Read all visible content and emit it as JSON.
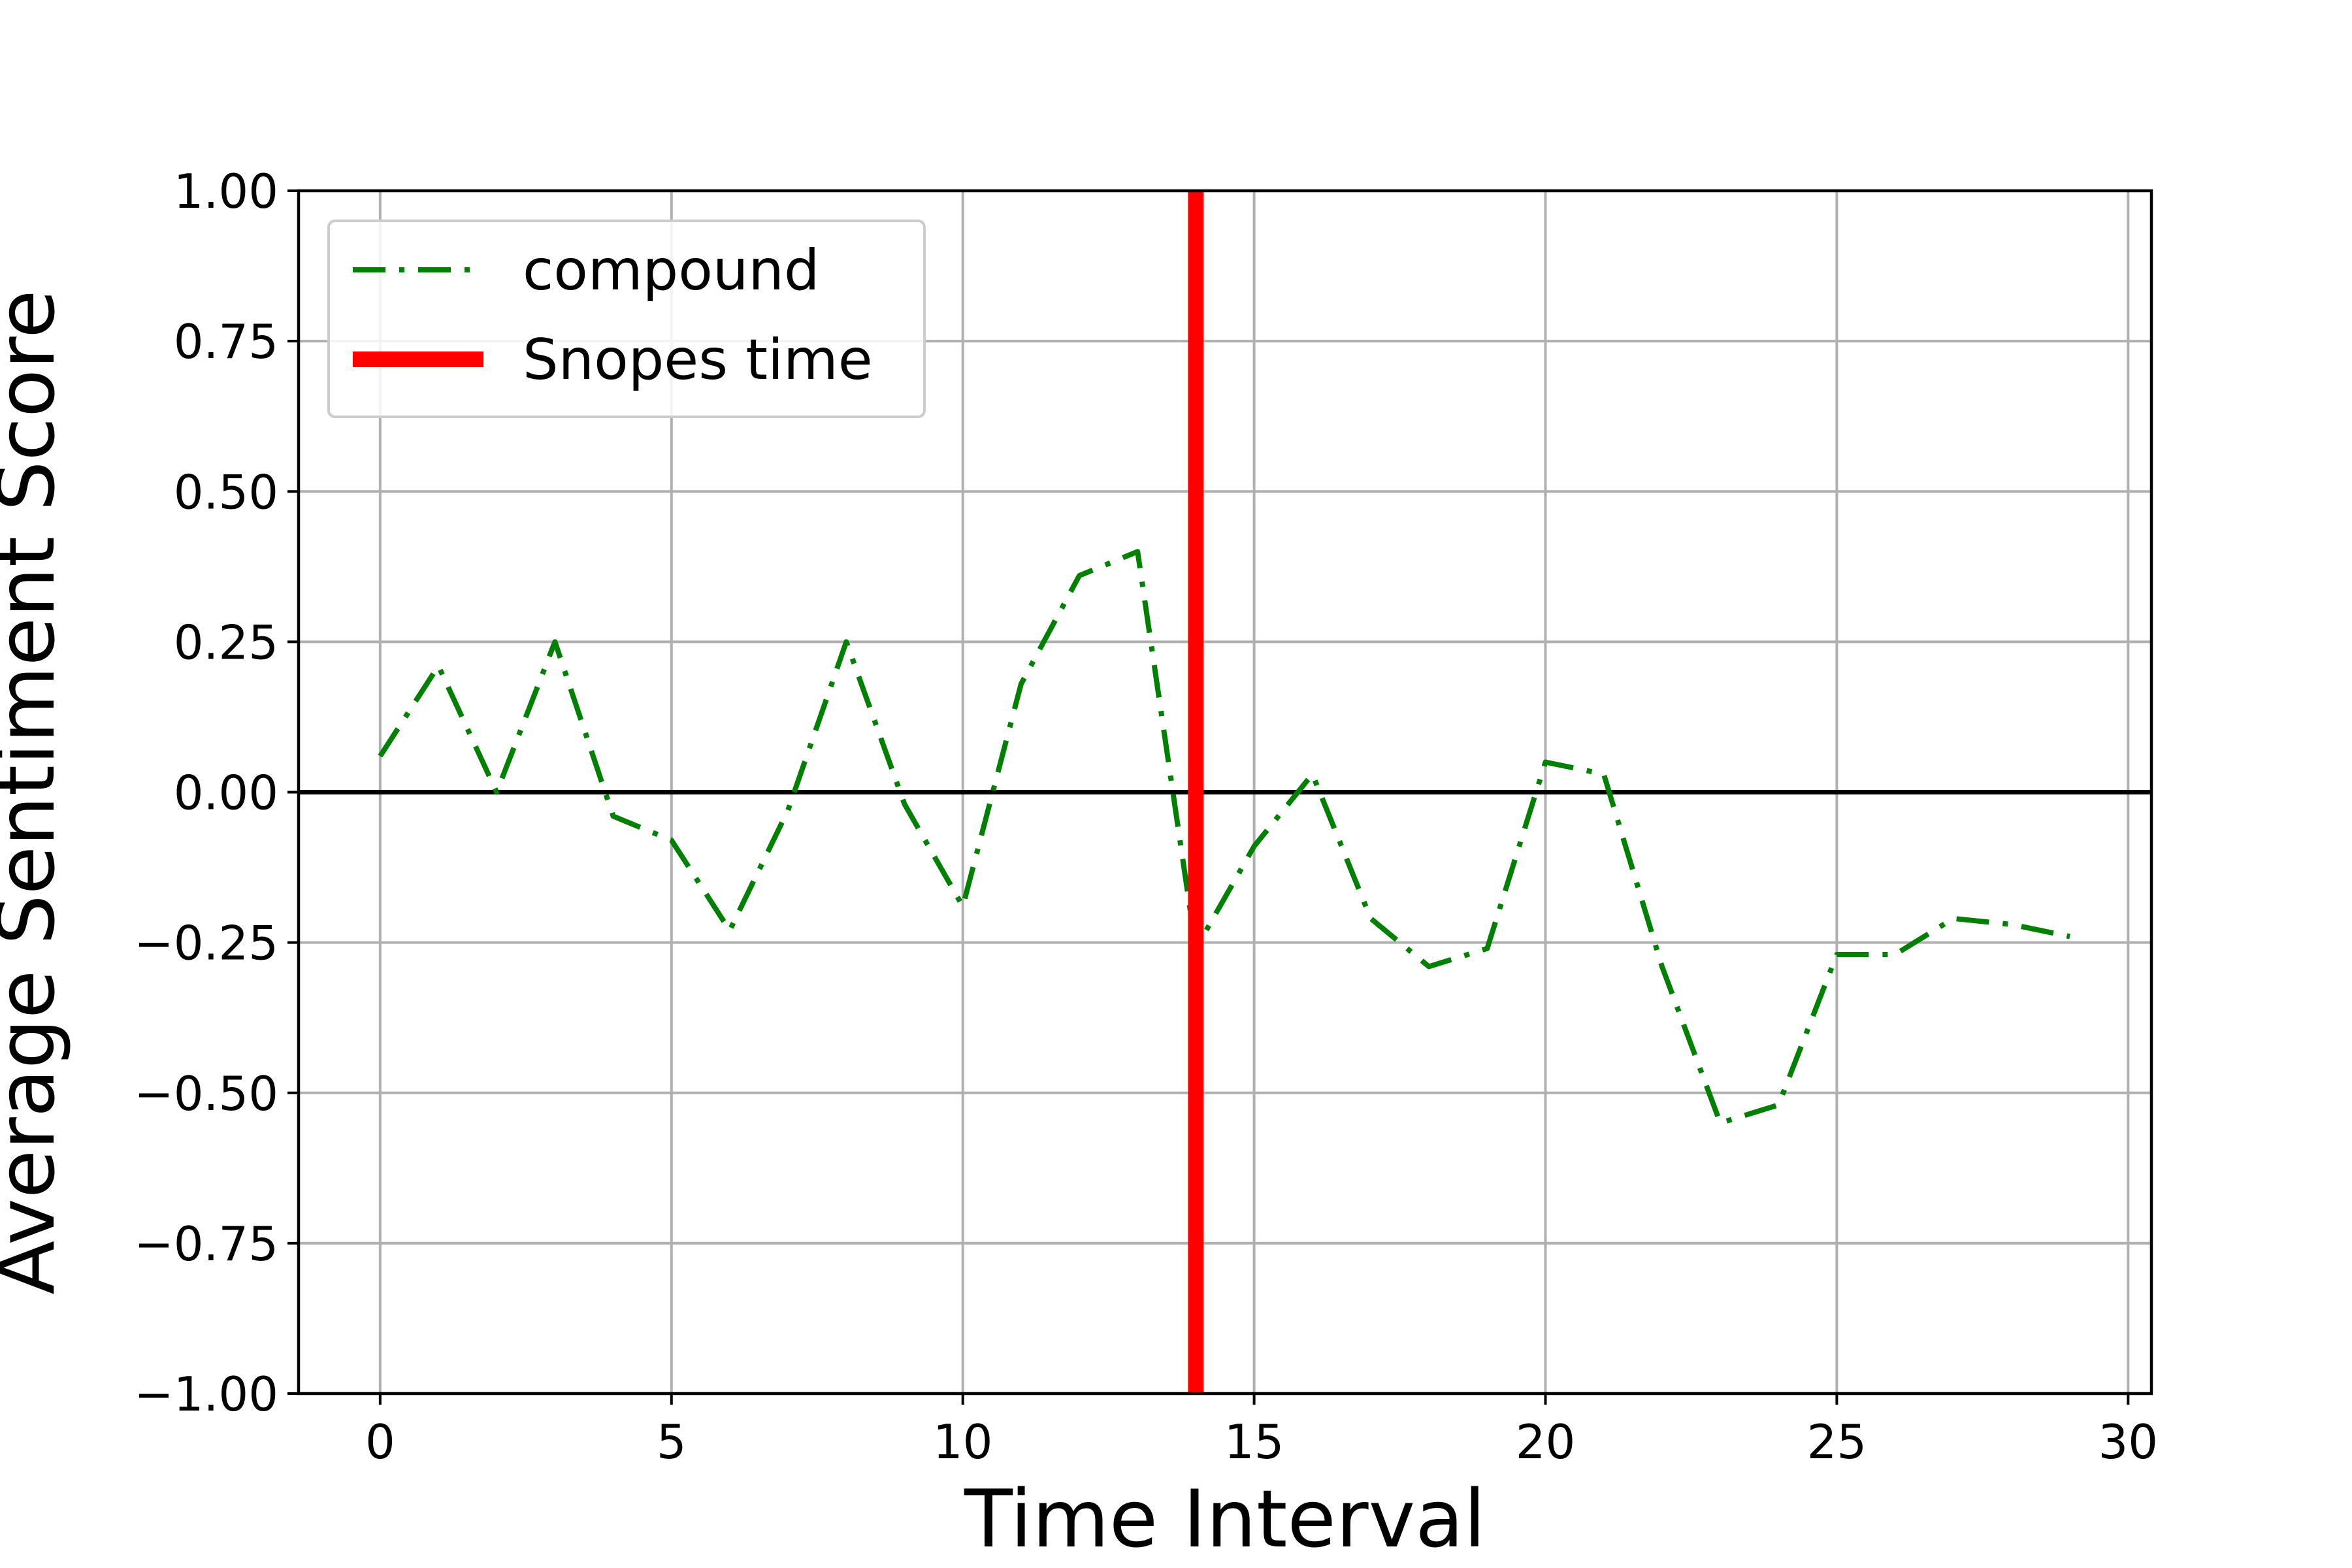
{
  "chart_data": {
    "type": "line",
    "title": "",
    "xlabel": "Time Interval",
    "ylabel": "Average Sentiment Score",
    "xlim": [
      -1.4,
      30.4
    ],
    "ylim": [
      -1.0,
      1.0
    ],
    "x_ticks": [
      "0",
      "5",
      "10",
      "15",
      "20",
      "25",
      "30"
    ],
    "y_ticks": [
      "−1.00",
      "−0.75",
      "−0.50",
      "−0.25",
      "0.00",
      "0.25",
      "0.50",
      "0.75",
      "1.00"
    ],
    "grid": true,
    "legend_position": "top-left",
    "x": [
      0,
      1,
      2,
      3,
      4,
      5,
      6,
      7,
      8,
      9,
      10,
      11,
      12,
      13,
      14,
      15,
      16,
      17,
      18,
      19,
      20,
      21,
      22,
      23,
      24,
      25,
      26,
      27,
      28,
      29
    ],
    "series": [
      {
        "name": "compound",
        "color": "#008000",
        "line_style": "dash-dot",
        "values": [
          0.06,
          0.21,
          0.0,
          0.25,
          -0.04,
          -0.08,
          -0.23,
          -0.03,
          0.25,
          -0.02,
          -0.19,
          0.18,
          0.36,
          0.4,
          -0.26,
          -0.09,
          0.03,
          -0.21,
          -0.29,
          -0.26,
          0.05,
          0.03,
          -0.29,
          -0.55,
          -0.52,
          -0.27,
          -0.27,
          -0.21,
          -0.22,
          -0.24
        ]
      }
    ],
    "reference_lines": [
      {
        "name": "Snopes time",
        "orientation": "vertical",
        "x": 14,
        "color": "#ff0000"
      },
      {
        "name": "",
        "orientation": "horizontal",
        "y": 0,
        "color": "#000000"
      }
    ]
  }
}
